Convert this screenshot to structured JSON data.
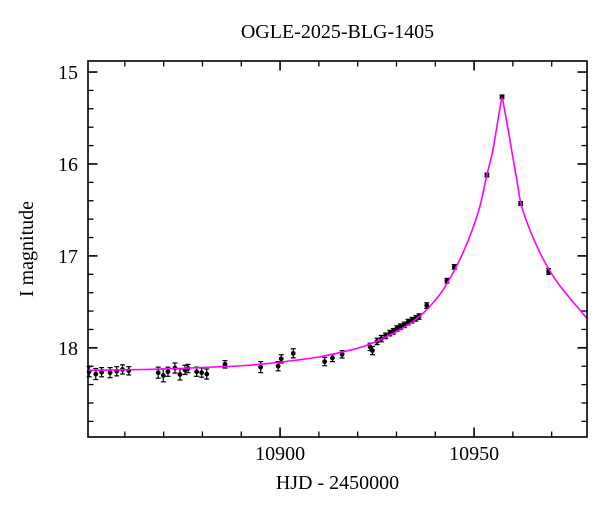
{
  "figure": {
    "background": "#ffffff"
  },
  "chart_data": {
    "type": "scatter",
    "title": "OGLE-2025-BLG-1405",
    "xlabel": "HJD - 2450000",
    "ylabel": "I magnitude",
    "xlim": [
      10850.5,
      10979.1
    ],
    "ylim": [
      14.88,
      18.97
    ],
    "y_axis_inverted_magnitude": true,
    "grid": false,
    "legend": null,
    "x_ticks_major": [
      10900,
      10950
    ],
    "x_tick_labels": [
      "10900",
      "10950"
    ],
    "x_ticks_minor": [
      10860,
      10870,
      10880,
      10890,
      10910,
      10920,
      10930,
      10940,
      10960,
      10970
    ],
    "y_ticks_major": [
      15,
      16,
      17,
      18
    ],
    "y_tick_labels": [
      "15",
      "16",
      "17",
      "18"
    ],
    "y_ticks_minor": [
      15.2,
      15.4,
      15.6,
      15.8,
      16.2,
      16.4,
      16.6,
      16.8,
      17.2,
      17.4,
      17.6,
      17.8,
      18.2,
      18.4,
      18.6,
      18.8
    ],
    "colors": {
      "model_curve": "#ff00ff",
      "data_points": "#000000",
      "axis": "#000000",
      "background": "#ffffff"
    },
    "series": [
      {
        "name": "I-band photometry",
        "marker": "filled-circle",
        "point_format": [
          "t_hjd_minus_2450000",
          "I_magnitude",
          "error_mag"
        ],
        "points": [
          [
            10850.8,
            18.26,
            0.055
          ],
          [
            10852.5,
            18.285,
            0.06
          ],
          [
            10854.0,
            18.265,
            0.05
          ],
          [
            10856.2,
            18.27,
            0.055
          ],
          [
            10857.9,
            18.255,
            0.05
          ],
          [
            10859.4,
            18.235,
            0.05
          ],
          [
            10861.0,
            18.25,
            0.045
          ],
          [
            10868.6,
            18.27,
            0.06
          ],
          [
            10869.9,
            18.3,
            0.07
          ],
          [
            10871.1,
            18.26,
            0.05
          ],
          [
            10872.9,
            18.22,
            0.055
          ],
          [
            10874.2,
            18.29,
            0.06
          ],
          [
            10875.5,
            18.24,
            0.05
          ],
          [
            10876.3,
            18.225,
            0.045
          ],
          [
            10878.5,
            18.26,
            0.05
          ],
          [
            10879.8,
            18.27,
            0.05
          ],
          [
            10881.1,
            18.285,
            0.055
          ],
          [
            10885.8,
            18.18,
            0.04
          ],
          [
            10895.0,
            18.21,
            0.06
          ],
          [
            10899.5,
            18.2,
            0.05
          ],
          [
            10900.3,
            18.12,
            0.045
          ],
          [
            10903.4,
            18.06,
            0.05
          ],
          [
            10911.5,
            18.15,
            0.045
          ],
          [
            10913.5,
            18.11,
            0.04
          ],
          [
            10916.0,
            18.07,
            0.04
          ],
          [
            10923.2,
            17.99,
            0.04
          ],
          [
            10923.8,
            18.03,
            0.045
          ],
          [
            10925.0,
            17.93,
            0.035
          ],
          [
            10926.1,
            17.9,
            0.035
          ],
          [
            10927.2,
            17.87,
            0.03
          ],
          [
            10928.3,
            17.84,
            0.03
          ],
          [
            10929.2,
            17.82,
            0.03
          ],
          [
            10930.1,
            17.79,
            0.03
          ],
          [
            10931.0,
            17.77,
            0.03
          ],
          [
            10932.0,
            17.75,
            0.03
          ],
          [
            10933.0,
            17.72,
            0.03
          ],
          [
            10934.0,
            17.7,
            0.03
          ],
          [
            10935.0,
            17.68,
            0.03
          ],
          [
            10935.8,
            17.66,
            0.03
          ],
          [
            10937.8,
            17.54,
            0.03
          ],
          [
            10943.0,
            17.27,
            0.025
          ],
          [
            10944.9,
            17.12,
            0.025
          ],
          [
            10953.3,
            16.12,
            0.02
          ],
          [
            10957.2,
            15.27,
            0.02
          ],
          [
            10962.0,
            16.43,
            0.02
          ],
          [
            10969.2,
            17.17,
            0.03
          ]
        ]
      }
    ],
    "model_curve": {
      "name": "microlensing model",
      "approx_params": {
        "t0": 10957.2,
        "peak_I_mag": 15.28,
        "baseline_I_mag": 18.26
      },
      "control_points": [
        [
          10850.5,
          18.245
        ],
        [
          10858.0,
          18.24
        ],
        [
          10866.0,
          18.235
        ],
        [
          10874.0,
          18.225
        ],
        [
          10882.0,
          18.21
        ],
        [
          10890.0,
          18.195
        ],
        [
          10897.0,
          18.17
        ],
        [
          10904.0,
          18.135
        ],
        [
          10910.0,
          18.1
        ],
        [
          10915.0,
          18.055
        ],
        [
          10920.0,
          18.005
        ],
        [
          10924.0,
          17.945
        ],
        [
          10928.0,
          17.865
        ],
        [
          10932.0,
          17.775
        ],
        [
          10936.0,
          17.655
        ],
        [
          10939.0,
          17.53
        ],
        [
          10942.0,
          17.37
        ],
        [
          10944.5,
          17.19
        ],
        [
          10947.0,
          16.98
        ],
        [
          10949.5,
          16.72
        ],
        [
          10951.5,
          16.46
        ],
        [
          10953.3,
          16.12
        ],
        [
          10954.8,
          15.86
        ],
        [
          10956.0,
          15.56
        ],
        [
          10956.8,
          15.36
        ],
        [
          10957.25,
          15.285
        ],
        [
          10957.8,
          15.4
        ],
        [
          10958.8,
          15.63
        ],
        [
          10960.0,
          15.93
        ],
        [
          10961.0,
          16.17
        ],
        [
          10962.0,
          16.42
        ],
        [
          10963.5,
          16.62
        ],
        [
          10965.5,
          16.83
        ],
        [
          10968.0,
          17.05
        ],
        [
          10971.0,
          17.26
        ],
        [
          10974.5,
          17.45
        ],
        [
          10979.3,
          17.69
        ]
      ]
    }
  }
}
